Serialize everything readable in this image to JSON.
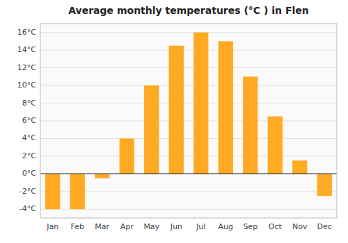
{
  "chart_data": {
    "type": "bar",
    "title": "Average monthly temperatures (°C ) in Flen",
    "categories": [
      "Jan",
      "Feb",
      "Mar",
      "Apr",
      "May",
      "Jun",
      "Jul",
      "Aug",
      "Sep",
      "Oct",
      "Nov",
      "Dec"
    ],
    "values": [
      -4,
      -4,
      -0.5,
      4,
      10,
      14.5,
      16,
      15,
      11,
      6.5,
      1.5,
      -2.5
    ],
    "color": "#FFAA22",
    "ylim": [
      -5,
      17
    ],
    "yticks": [
      {
        "value": -4,
        "label": "-4°C"
      },
      {
        "value": -2,
        "label": "-2°C"
      },
      {
        "value": 0,
        "label": "0°C"
      },
      {
        "value": 2,
        "label": "2°C"
      },
      {
        "value": 4,
        "label": "4°C"
      },
      {
        "value": 6,
        "label": "6°C"
      },
      {
        "value": 8,
        "label": "8°C"
      },
      {
        "value": 10,
        "label": "10°C"
      },
      {
        "value": 12,
        "label": "12°C"
      },
      {
        "value": 14,
        "label": "14°C"
      },
      {
        "value": 16,
        "label": "16°C"
      }
    ],
    "grid": true
  }
}
